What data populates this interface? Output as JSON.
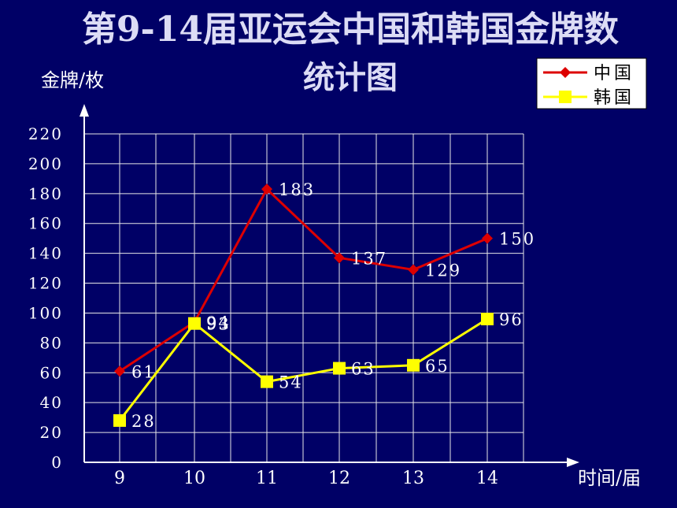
{
  "chart_data": {
    "type": "line",
    "title_line1": "第9-14届亚运会中国和韩国金牌数",
    "title_line2": "统计图",
    "ylabel": "金牌/枚",
    "xlabel": "时间/届",
    "categories": [
      "9",
      "10",
      "11",
      "12",
      "13",
      "14"
    ],
    "yticks": [
      0,
      20,
      40,
      60,
      80,
      100,
      120,
      140,
      160,
      180,
      200,
      220
    ],
    "ylim": [
      0,
      220
    ],
    "grid": true,
    "legend_position": "top-right",
    "series": [
      {
        "name": "中国",
        "values": [
          61,
          94,
          183,
          137,
          129,
          150
        ],
        "color": "#DD0000",
        "marker": "diamond"
      },
      {
        "name": "韩国",
        "values": [
          28,
          93,
          54,
          63,
          65,
          96
        ],
        "color": "#FFFF00",
        "marker": "square"
      }
    ]
  },
  "colors": {
    "background": "#000066",
    "text": "#FFFFFF",
    "title": "#DCDCF5",
    "grid": "#E6E6E6",
    "legend_background": "#FFFFFF"
  }
}
